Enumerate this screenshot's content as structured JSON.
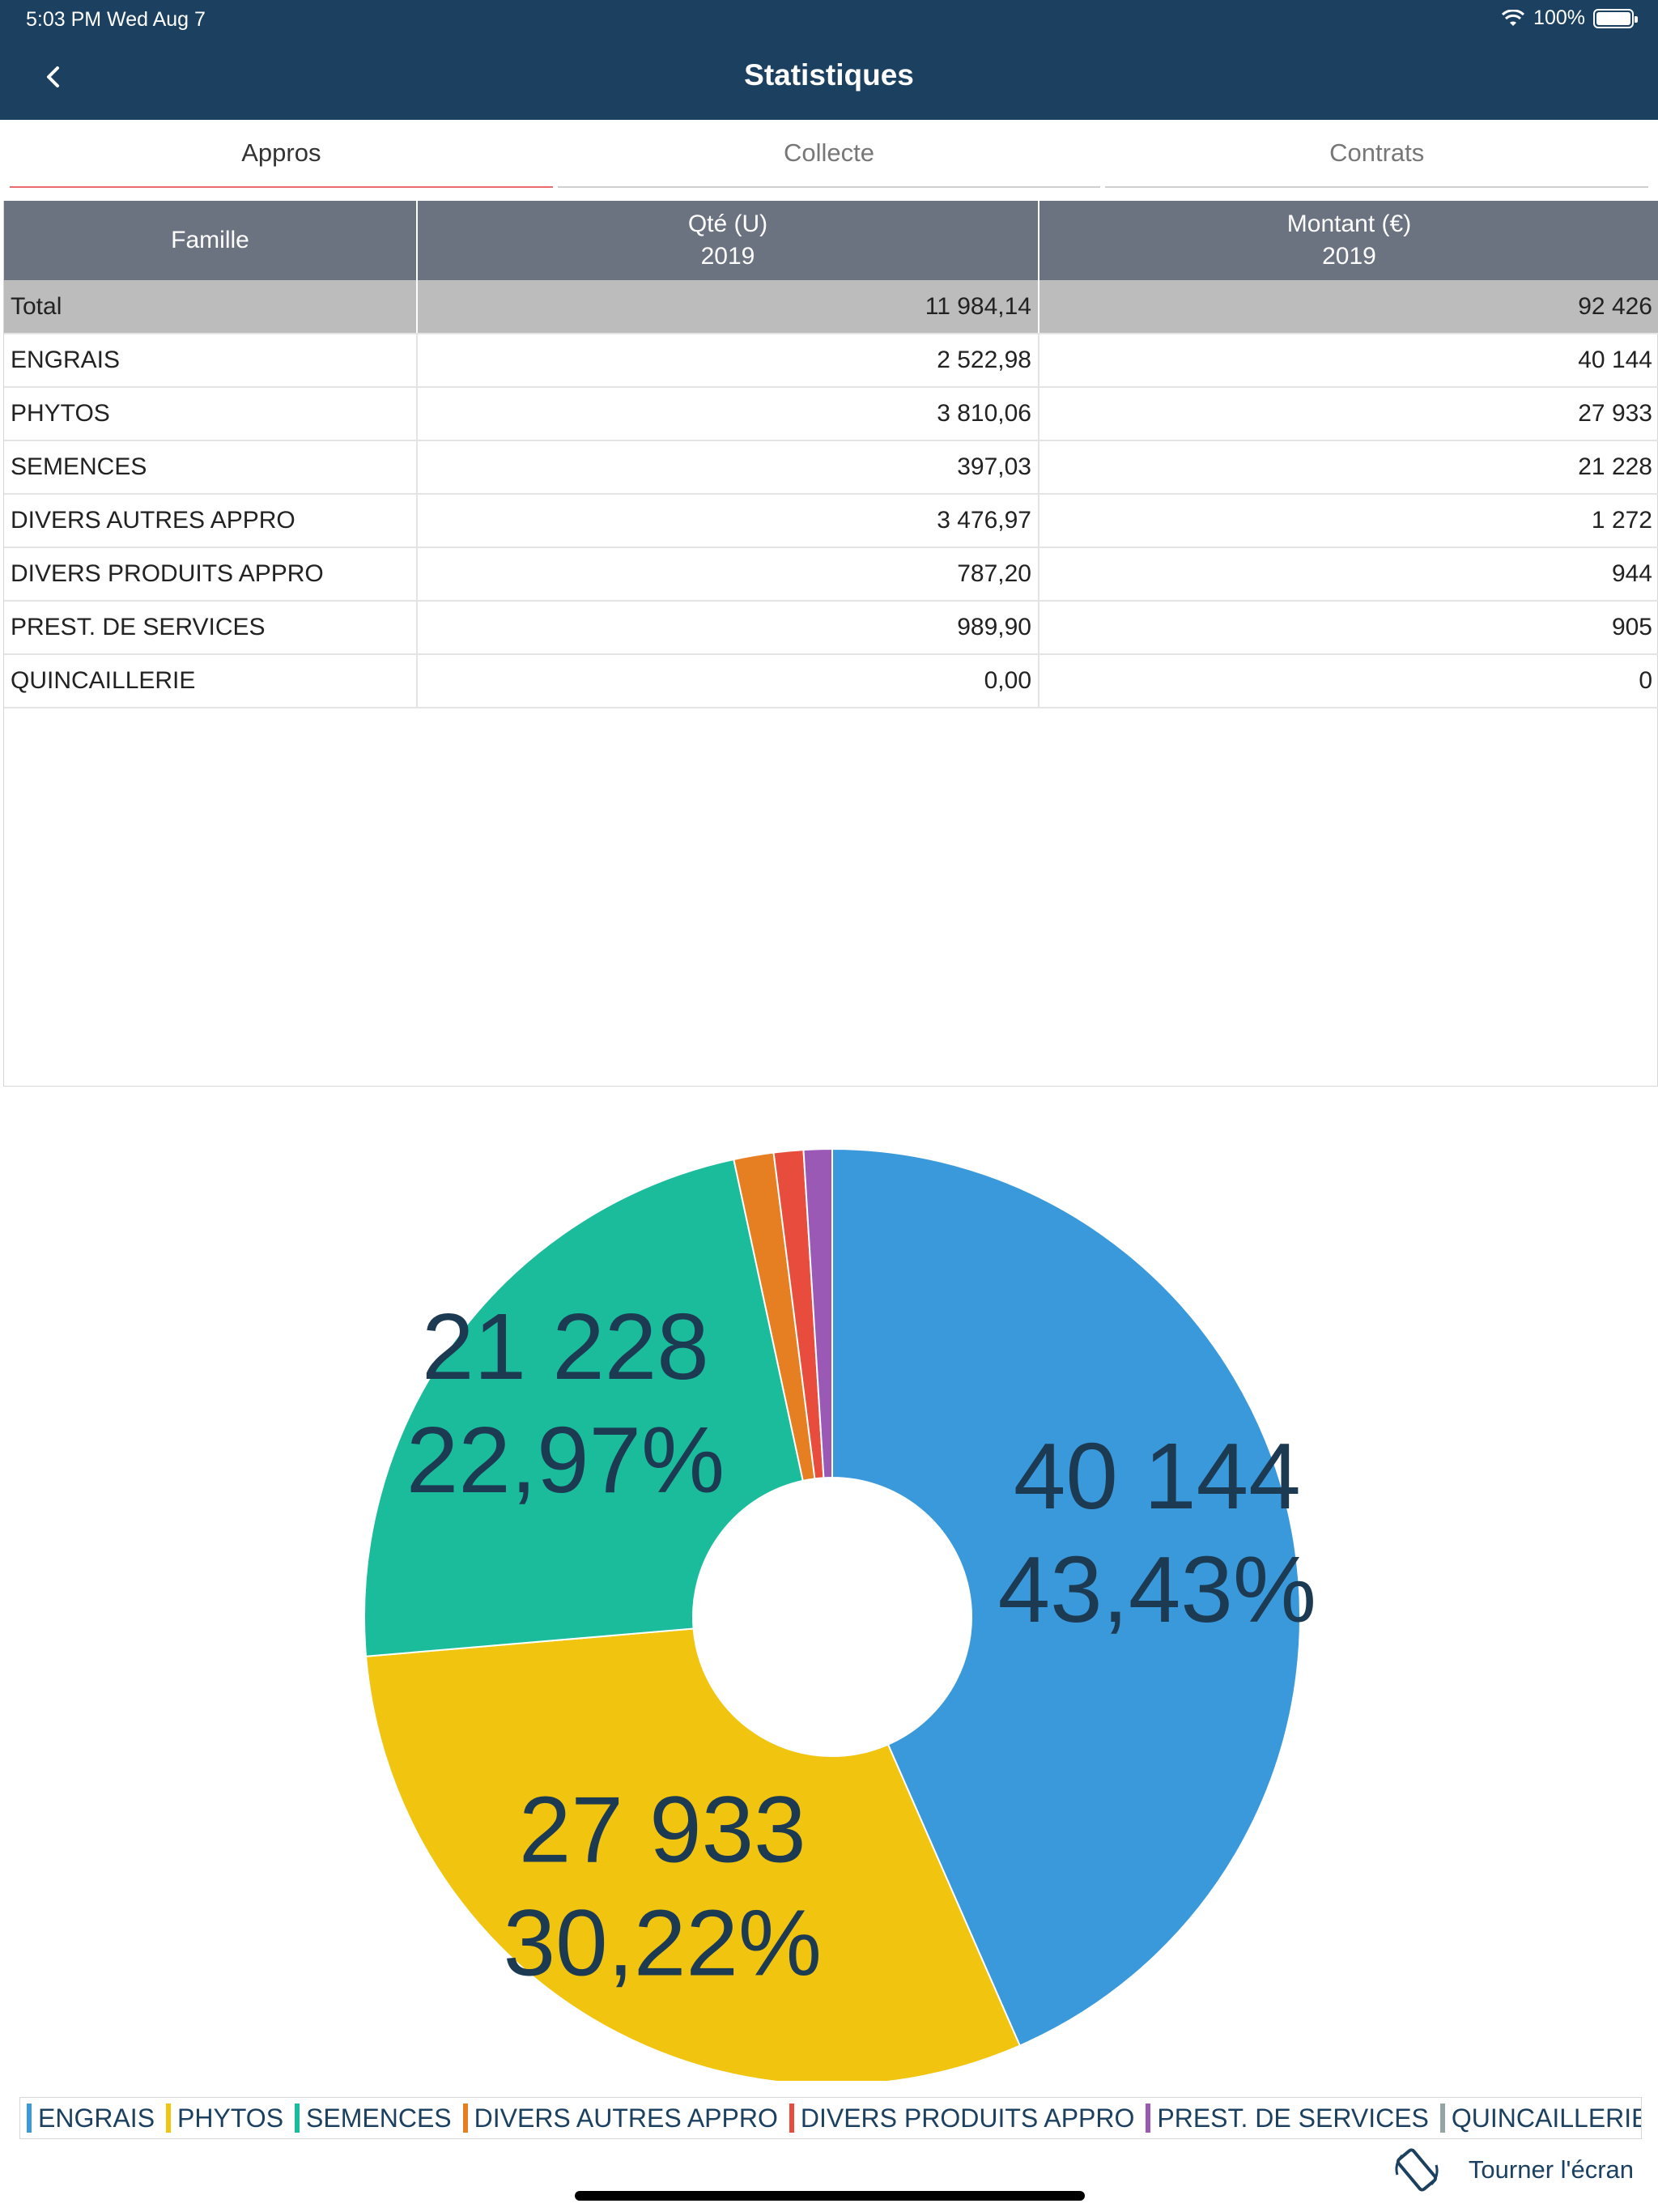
{
  "status_bar": {
    "time": "5:03 PM   Wed Aug 7",
    "battery": "100%"
  },
  "nav": {
    "title": "Statistiques",
    "back_icon": "chevron-left-icon"
  },
  "tabs": [
    {
      "label": "Appros",
      "active": true
    },
    {
      "label": "Collecte",
      "active": false
    },
    {
      "label": "Contrats",
      "active": false
    }
  ],
  "table": {
    "headers": {
      "famille": "Famille",
      "qte": "Qté (U)",
      "qte_year": "2019",
      "montant": "Montant (€)",
      "montant_year": "2019"
    },
    "total": {
      "label": "Total",
      "qte": "11 984,14",
      "montant": "92 426"
    },
    "rows": [
      {
        "famille": "ENGRAIS",
        "qte": "2 522,98",
        "montant": "40 144"
      },
      {
        "famille": "PHYTOS",
        "qte": "3 810,06",
        "montant": "27 933"
      },
      {
        "famille": "SEMENCES",
        "qte": "397,03",
        "montant": "21 228"
      },
      {
        "famille": "DIVERS AUTRES APPRO",
        "qte": "3 476,97",
        "montant": "1 272"
      },
      {
        "famille": "DIVERS PRODUITS APPRO",
        "qte": "787,20",
        "montant": "944"
      },
      {
        "famille": "PREST. DE SERVICES",
        "qte": "989,90",
        "montant": "905"
      },
      {
        "famille": "QUINCAILLERIE",
        "qte": "0,00",
        "montant": "0"
      }
    ]
  },
  "chart_data": {
    "type": "pie",
    "categories": [
      "ENGRAIS",
      "PHYTOS",
      "SEMENCES",
      "DIVERS AUTRES APPRO",
      "DIVERS PRODUITS APPRO",
      "PREST. DE SERVICES",
      "QUINCAILLERIE"
    ],
    "values": [
      40144,
      27933,
      21228,
      1272,
      944,
      905,
      0
    ],
    "colors": [
      "#3a99db",
      "#f1c40f",
      "#1abc9c",
      "#e67e22",
      "#e74c3c",
      "#9b59b6",
      "#95a5a6"
    ],
    "slice_labels": [
      {
        "value": "40 144",
        "percent": "43,43%"
      },
      {
        "value": "27 933",
        "percent": "30,22%"
      },
      {
        "value": "21 228",
        "percent": "22,97%"
      }
    ],
    "legend_placement": "bottom"
  },
  "rotate": {
    "label": "Tourner l'écran",
    "icon": "rotate-screen-icon"
  }
}
